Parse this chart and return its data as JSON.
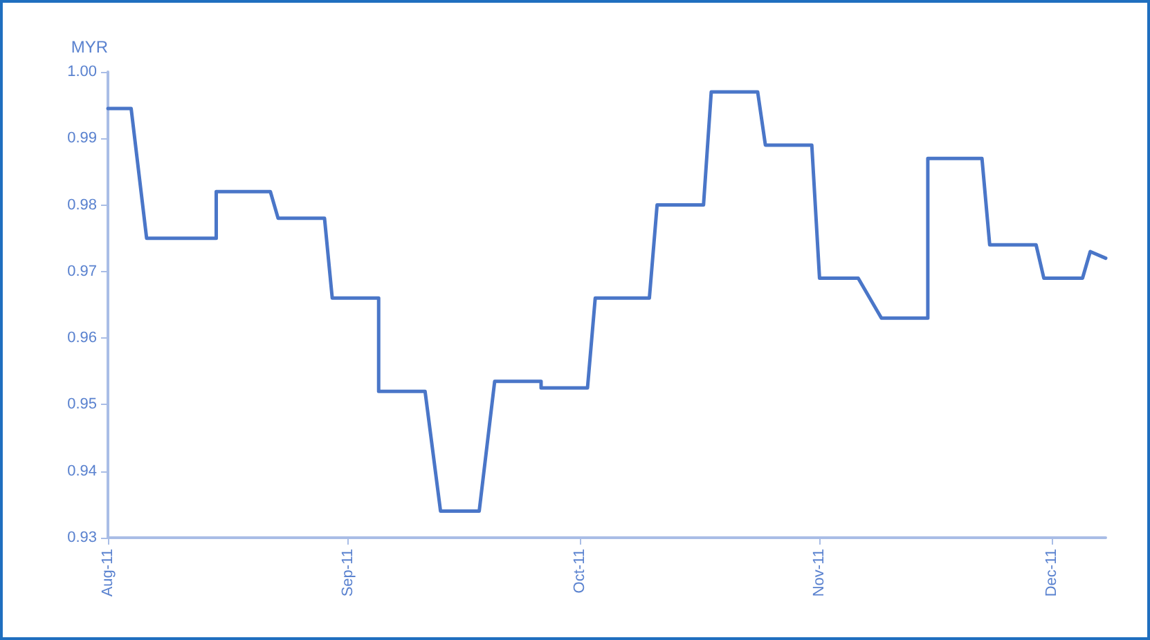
{
  "chart_data": {
    "type": "line",
    "ylabel": "MYR",
    "x": [
      "2011-08-01",
      "2011-08-04",
      "2011-08-06",
      "2011-08-15",
      "2011-08-15",
      "2011-08-22",
      "2011-08-23",
      "2011-08-29",
      "2011-08-30",
      "2011-09-05",
      "2011-09-05",
      "2011-09-11",
      "2011-09-13",
      "2011-09-18",
      "2011-09-20",
      "2011-09-26",
      "2011-09-26",
      "2011-10-02",
      "2011-10-03",
      "2011-10-10",
      "2011-10-11",
      "2011-10-17",
      "2011-10-18",
      "2011-10-24",
      "2011-10-25",
      "2011-10-31",
      "2011-11-01",
      "2011-11-06",
      "2011-11-09",
      "2011-11-15",
      "2011-11-15",
      "2011-11-22",
      "2011-11-23",
      "2011-11-29",
      "2011-11-30",
      "2011-12-05",
      "2011-12-06",
      "2011-12-08"
    ],
    "series": [
      {
        "color": "#4a76c8",
        "values": [
          0.9945,
          0.9945,
          0.975,
          0.975,
          0.982,
          0.982,
          0.978,
          0.978,
          0.966,
          0.966,
          0.952,
          0.952,
          0.934,
          0.934,
          0.9535,
          0.9535,
          0.9525,
          0.9525,
          0.966,
          0.966,
          0.98,
          0.98,
          0.997,
          0.997,
          0.989,
          0.989,
          0.969,
          0.969,
          0.963,
          0.963,
          0.987,
          0.987,
          0.974,
          0.974,
          0.969,
          0.969,
          0.973,
          0.972
        ]
      }
    ],
    "xlim": [
      "2011-08-01",
      "2011-12-08"
    ],
    "xticks": [
      {
        "value": "2011-08-01",
        "label": "Aug-11"
      },
      {
        "value": "2011-09-01",
        "label": "Sep-11"
      },
      {
        "value": "2011-10-01",
        "label": "Oct-11"
      },
      {
        "value": "2011-11-01",
        "label": "Nov-11"
      },
      {
        "value": "2011-12-01",
        "label": "Dec-11"
      }
    ],
    "ylim": [
      0.93,
      1.0
    ],
    "yticks": [
      {
        "value": 0.93,
        "label": "0.93"
      },
      0.94,
      0.95,
      0.96,
      0.97,
      0.98,
      0.99,
      {
        "value": 1.0,
        "label": "1.00"
      }
    ],
    "tick_labels": "xy"
  }
}
